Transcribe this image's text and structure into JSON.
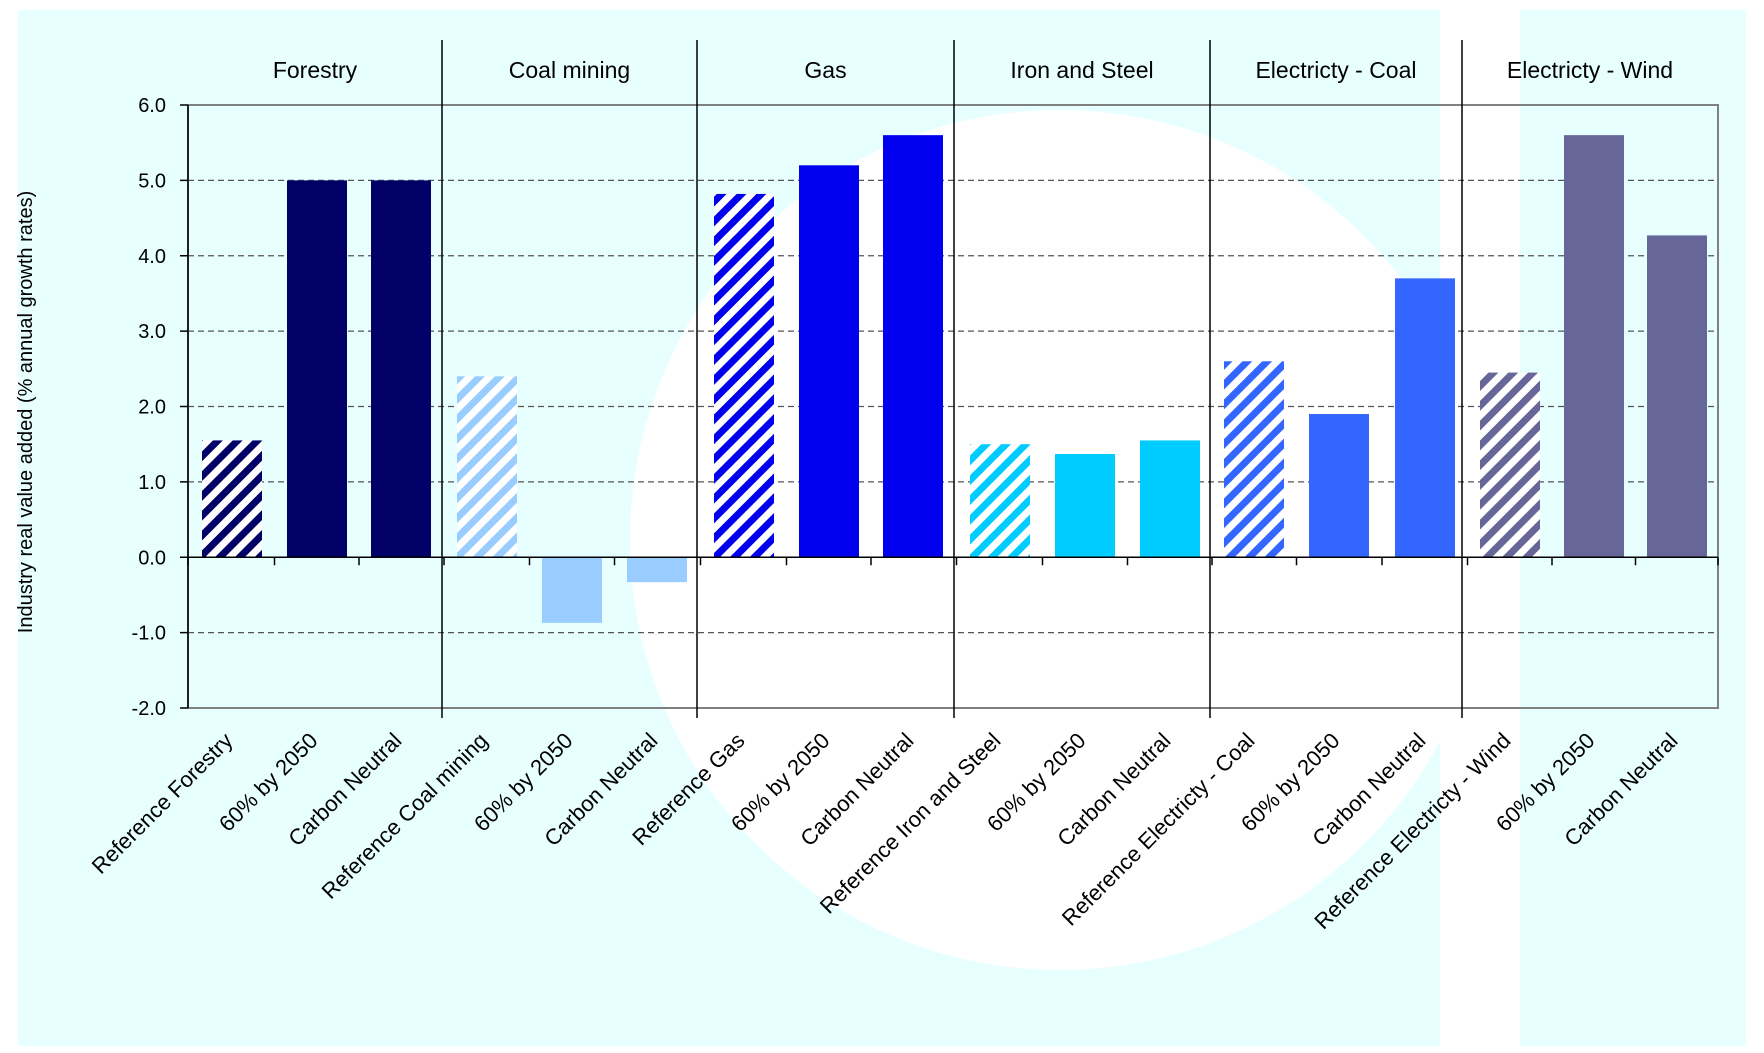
{
  "chart_data": {
    "type": "bar",
    "ylabel": "Industry real value added (% annual growth rates)",
    "ylim": [
      -2.0,
      6.0
    ],
    "yticks": [
      "6.0",
      "5.0",
      "4.0",
      "3.0",
      "2.0",
      "1.0",
      "0.0",
      "-1.0",
      "-2.0"
    ],
    "grid": "dashed horizontal",
    "groups": [
      {
        "name": "Forestry",
        "color": "#000066",
        "bars": [
          {
            "label": "Reference Forestry",
            "value": 1.55,
            "hatched": true
          },
          {
            "label": "60% by 2050",
            "value": 5.0,
            "hatched": false
          },
          {
            "label": "Carbon Neutral",
            "value": 5.0,
            "hatched": false
          }
        ]
      },
      {
        "name": "Coal mining",
        "color": "#99ccff",
        "bars": [
          {
            "label": "Reference Coal mining",
            "value": 2.4,
            "hatched": true
          },
          {
            "label": "60% by 2050",
            "value": -0.87,
            "hatched": false
          },
          {
            "label": "Carbon Neutral",
            "value": -0.33,
            "hatched": false
          }
        ]
      },
      {
        "name": "Gas",
        "color": "#0000ee",
        "bars": [
          {
            "label": "Reference Gas",
            "value": 4.82,
            "hatched": true
          },
          {
            "label": "60% by 2050",
            "value": 5.2,
            "hatched": false
          },
          {
            "label": "Carbon Neutral",
            "value": 5.6,
            "hatched": false
          }
        ]
      },
      {
        "name": "Iron and Steel",
        "color": "#00ccff",
        "bars": [
          {
            "label": "Reference Iron and Steel",
            "value": 1.5,
            "hatched": true
          },
          {
            "label": "60% by 2050",
            "value": 1.37,
            "hatched": false
          },
          {
            "label": "Carbon Neutral",
            "value": 1.55,
            "hatched": false
          }
        ]
      },
      {
        "name": "Electricty - Coal",
        "color": "#3366ff",
        "bars": [
          {
            "label": "Reference Electricty - Coal",
            "value": 2.6,
            "hatched": true
          },
          {
            "label": "60% by 2050",
            "value": 1.9,
            "hatched": false
          },
          {
            "label": "Carbon Neutral",
            "value": 3.7,
            "hatched": false
          }
        ]
      },
      {
        "name": "Electricty - Wind",
        "color": "#666699",
        "bars": [
          {
            "label": "Reference Electricty - Wind",
            "value": 2.45,
            "hatched": true
          },
          {
            "label": "60% by 2050",
            "value": 5.6,
            "hatched": false
          },
          {
            "label": "Carbon Neutral",
            "value": 4.27,
            "hatched": false
          }
        ]
      }
    ],
    "colors": {
      "background": "#e8ffff",
      "backdrop_circle": "#ffffff",
      "plot_border": "#808080",
      "grid": "#555555",
      "axis": "#000000"
    }
  }
}
